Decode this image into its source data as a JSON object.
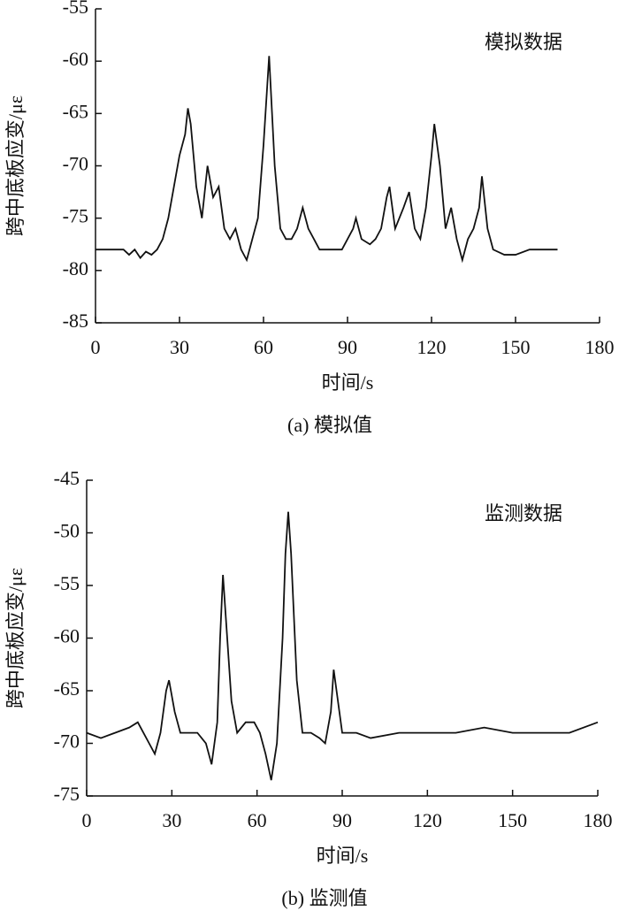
{
  "chart_data": [
    {
      "type": "line",
      "annotation": "模拟数据",
      "caption": "(a) 模拟值",
      "xlabel": "时间/s",
      "ylabel": "跨中底板应变/με",
      "x": [
        0,
        5,
        10,
        12,
        14,
        16,
        18,
        20,
        22,
        24,
        26,
        28,
        30,
        32,
        33,
        34,
        36,
        38,
        40,
        42,
        44,
        46,
        48,
        50,
        52,
        54,
        56,
        58,
        60,
        62,
        64,
        66,
        68,
        70,
        72,
        74,
        76,
        78,
        80,
        84,
        88,
        92,
        93,
        95,
        98,
        100,
        102,
        104,
        105,
        107,
        110,
        112,
        114,
        116,
        118,
        120,
        121,
        123,
        125,
        127,
        129,
        131,
        133,
        135,
        137,
        138,
        140,
        142,
        146,
        150,
        155,
        160,
        165
      ],
      "series": [
        {
          "color": "#111111",
          "values": [
            -78,
            -78,
            -78,
            -78.5,
            -78,
            -78.8,
            -78.2,
            -78.5,
            -78,
            -77,
            -75,
            -72,
            -69,
            -67,
            -64.5,
            -66,
            -72,
            -75,
            -70,
            -73,
            -72,
            -76,
            -77,
            -76,
            -78,
            -79,
            -77,
            -75,
            -68,
            -59.5,
            -70,
            -76,
            -77,
            -77,
            -76,
            -74,
            -76,
            -77,
            -78,
            -78,
            -78,
            -76,
            -75,
            -77,
            -77.5,
            -77,
            -76,
            -73,
            -72,
            -76,
            -74,
            -72.5,
            -76,
            -77,
            -74,
            -69,
            -66,
            -70,
            -76,
            -74,
            -77,
            -79,
            -77,
            -76,
            -74,
            -71,
            -76,
            -78,
            -78.5,
            -78.5,
            -78,
            -78,
            -78
          ]
        }
      ],
      "xlim": [
        0,
        180
      ],
      "ylim": [
        -85,
        -55
      ],
      "xticks": [
        0,
        30,
        60,
        90,
        120,
        150,
        180
      ],
      "yticks": [
        -55,
        -60,
        -65,
        -70,
        -75,
        -80,
        -85
      ]
    },
    {
      "type": "line",
      "annotation": "监测数据",
      "caption": "(b) 监测值",
      "xlabel": "时间/s",
      "ylabel": "跨中底板应变/με",
      "x": [
        0,
        5,
        10,
        15,
        18,
        20,
        22,
        24,
        26,
        28,
        29,
        31,
        33,
        36,
        39,
        42,
        44,
        46,
        47,
        48,
        49,
        51,
        53,
        56,
        59,
        61,
        63,
        65,
        67,
        69,
        70,
        71,
        72,
        74,
        76,
        79,
        82,
        84,
        86,
        87,
        88,
        90,
        95,
        100,
        110,
        120,
        130,
        140,
        150,
        160,
        170,
        180
      ],
      "series": [
        {
          "color": "#111111",
          "values": [
            -69,
            -69.5,
            -69,
            -68.5,
            -68,
            -69,
            -70,
            -71,
            -69,
            -65,
            -64,
            -67,
            -69,
            -69,
            -69,
            -70,
            -72,
            -68,
            -60,
            -54,
            -58,
            -66,
            -69,
            -68,
            -68,
            -69,
            -71,
            -73.5,
            -70,
            -60,
            -52,
            -48,
            -52,
            -64,
            -69,
            -69,
            -69.5,
            -70,
            -67,
            -63,
            -65,
            -69,
            -69,
            -69.5,
            -69,
            -69,
            -69,
            -68.5,
            -69,
            -69,
            -69,
            -68
          ]
        }
      ],
      "xlim": [
        0,
        180
      ],
      "ylim": [
        -75,
        -45
      ],
      "xticks": [
        0,
        30,
        60,
        90,
        120,
        150,
        180
      ],
      "yticks": [
        -45,
        -50,
        -55,
        -60,
        -65,
        -70,
        -75
      ]
    }
  ]
}
